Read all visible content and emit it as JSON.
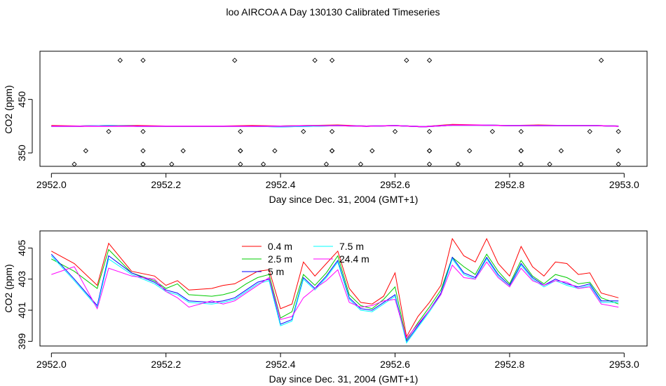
{
  "title": "loo AIRCOA A  Day 130130  Calibrated Timeseries",
  "chart_data": [
    {
      "type": "scatter",
      "xlabel": "Day since Dec. 31, 2004 (GMT+1)",
      "ylabel": "CO2 (ppm)",
      "xlim": [
        2951.98,
        2953.04
      ],
      "ylim": [
        325,
        540
      ],
      "xticks": [
        "2952.0",
        "2952.2",
        "2952.4",
        "2952.6",
        "2952.8",
        "2953.0"
      ],
      "yticks": [
        "350",
        "450"
      ],
      "points_x": [
        2952.04,
        2952.06,
        2952.1,
        2952.12,
        2952.16,
        2952.16,
        2952.16,
        2952.16,
        2952.16,
        2952.21,
        2952.23,
        2952.32,
        2952.33,
        2952.33,
        2952.33,
        2952.33,
        2952.37,
        2952.39,
        2952.44,
        2952.46,
        2952.48,
        2952.49,
        2952.49,
        2952.49,
        2952.49,
        2952.54,
        2952.56,
        2952.6,
        2952.62,
        2952.66,
        2952.66,
        2952.66,
        2952.66,
        2952.66,
        2952.71,
        2952.73,
        2952.77,
        2952.82,
        2952.82,
        2952.82,
        2952.82,
        2952.87,
        2952.89,
        2952.94,
        2952.96,
        2952.99,
        2952.99,
        2952.99
      ],
      "points_y": [
        329,
        354,
        390,
        523,
        523,
        390,
        354,
        329,
        329,
        329,
        354,
        523,
        390,
        354,
        329,
        354,
        329,
        354,
        390,
        523,
        329,
        390,
        354,
        523,
        354,
        329,
        354,
        390,
        523,
        523,
        390,
        354,
        329,
        354,
        329,
        354,
        390,
        390,
        354,
        329,
        354,
        329,
        354,
        390,
        523,
        390,
        354,
        329
      ],
      "series_x": [
        2952.0,
        2952.05,
        2952.1,
        2952.15,
        2952.2,
        2952.25,
        2952.3,
        2952.35,
        2952.4,
        2952.45,
        2952.5,
        2952.55,
        2952.6,
        2952.65,
        2952.7,
        2952.75,
        2952.8,
        2952.85,
        2952.9,
        2952.95,
        2952.99
      ],
      "series": [
        {
          "color": "#ff0000",
          "values": [
            401,
            400,
            401,
            401,
            400,
            400,
            400,
            401,
            400,
            401,
            402,
            400,
            401,
            399,
            403,
            402,
            401,
            402,
            401,
            401,
            400
          ]
        },
        {
          "color": "#00cc00",
          "values": [
            400,
            400,
            401,
            400,
            400,
            400,
            400,
            400,
            400,
            401,
            401,
            400,
            401,
            399,
            402,
            402,
            401,
            401,
            401,
            401,
            400
          ]
        },
        {
          "color": "#0000ff",
          "values": [
            400,
            400,
            401,
            400,
            400,
            400,
            400,
            400,
            399,
            400,
            401,
            400,
            401,
            399,
            402,
            402,
            401,
            401,
            401,
            401,
            400
          ]
        },
        {
          "color": "#00ffff",
          "values": [
            400,
            400,
            401,
            400,
            400,
            400,
            400,
            400,
            399,
            400,
            401,
            400,
            401,
            399,
            402,
            402,
            401,
            401,
            401,
            401,
            400
          ]
        },
        {
          "color": "#ff00ff",
          "values": [
            400,
            400,
            400,
            400,
            400,
            400,
            400,
            400,
            400,
            401,
            401,
            400,
            401,
            399,
            402,
            402,
            401,
            401,
            401,
            401,
            400
          ]
        }
      ]
    },
    {
      "type": "line",
      "xlabel": "Day since Dec. 31, 2004 (GMT+1)",
      "ylabel": "CO2 (ppm)",
      "xlim": [
        2951.98,
        2953.04
      ],
      "ylim": [
        398.7,
        406.1
      ],
      "xticks": [
        "2952.0",
        "2952.2",
        "2952.4",
        "2952.6",
        "2952.8",
        "2953.0"
      ],
      "yticks": [
        "399",
        "401",
        "403",
        "405"
      ],
      "legend_position": "top-center",
      "x": [
        2952.0,
        2952.04,
        2952.08,
        2952.1,
        2952.14,
        2952.18,
        2952.2,
        2952.22,
        2952.24,
        2952.28,
        2952.3,
        2952.32,
        2952.34,
        2952.36,
        2952.38,
        2952.4,
        2952.42,
        2952.44,
        2952.46,
        2952.48,
        2952.5,
        2952.52,
        2952.54,
        2952.56,
        2952.58,
        2952.6,
        2952.62,
        2952.64,
        2952.66,
        2952.68,
        2952.7,
        2952.72,
        2952.74,
        2952.76,
        2952.78,
        2952.8,
        2952.82,
        2952.84,
        2952.86,
        2952.88,
        2952.9,
        2952.92,
        2952.94,
        2952.96,
        2952.99
      ],
      "series": [
        {
          "name": "0.4 m",
          "color": "#ff0000",
          "values": [
            404.8,
            404.0,
            402.6,
            405.3,
            403.5,
            403.2,
            402.6,
            402.9,
            402.3,
            402.4,
            402.6,
            402.7,
            403.1,
            403.5,
            403.6,
            401.1,
            401.4,
            404.1,
            403.2,
            404.0,
            404.8,
            402.4,
            401.5,
            401.4,
            401.9,
            403.4,
            399.3,
            400.6,
            401.5,
            402.6,
            405.6,
            404.5,
            404.1,
            405.6,
            404.0,
            403.2,
            405.1,
            403.8,
            403.2,
            404.1,
            404.0,
            403.3,
            403.4,
            402.1,
            401.8
          ]
        },
        {
          "name": "2.5 m",
          "color": "#00cc00",
          "values": [
            404.3,
            403.5,
            402.4,
            404.9,
            403.4,
            402.9,
            402.4,
            402.7,
            402.0,
            401.9,
            402.0,
            402.2,
            402.7,
            403.1,
            403.3,
            400.5,
            400.9,
            403.3,
            402.6,
            403.4,
            404.5,
            402.0,
            401.3,
            401.1,
            401.7,
            402.5,
            399.1,
            400.2,
            401.2,
            402.3,
            404.4,
            403.8,
            403.3,
            404.6,
            403.5,
            402.7,
            404.2,
            403.2,
            402.7,
            403.3,
            403.1,
            402.7,
            402.8,
            401.8,
            401.4
          ]
        },
        {
          "name": "5 m",
          "color": "#0000ff",
          "values": [
            404.6,
            403.0,
            401.3,
            404.5,
            403.4,
            402.8,
            402.3,
            402.1,
            401.6,
            401.5,
            401.6,
            401.8,
            402.3,
            402.8,
            403.0,
            400.1,
            400.4,
            403.1,
            402.4,
            403.2,
            404.2,
            401.8,
            401.1,
            401.0,
            401.5,
            402.0,
            399.0,
            400.0,
            401.0,
            402.1,
            404.4,
            403.4,
            403.1,
            404.4,
            403.3,
            402.6,
            404.0,
            403.1,
            402.6,
            403.0,
            402.7,
            402.5,
            402.7,
            401.6,
            401.6
          ]
        },
        {
          "name": "7.5 m",
          "color": "#00ffff",
          "values": [
            404.5,
            402.9,
            401.2,
            404.3,
            403.3,
            402.7,
            402.2,
            402.0,
            401.5,
            401.4,
            401.5,
            401.7,
            402.2,
            402.7,
            402.9,
            400.0,
            400.3,
            403.0,
            402.3,
            403.1,
            404.1,
            401.7,
            401.0,
            400.9,
            401.4,
            401.9,
            398.9,
            399.9,
            400.9,
            402.0,
            404.3,
            403.3,
            403.0,
            404.3,
            403.2,
            402.5,
            403.9,
            403.0,
            402.5,
            402.9,
            402.6,
            402.4,
            402.6,
            401.5,
            401.5
          ]
        },
        {
          "name": "24.4 m",
          "color": "#ff00ff",
          "values": [
            403.3,
            403.8,
            401.1,
            403.7,
            403.2,
            403.0,
            402.2,
            401.8,
            401.2,
            401.6,
            401.4,
            401.6,
            402.1,
            402.6,
            403.1,
            400.4,
            400.6,
            401.8,
            402.4,
            402.9,
            403.6,
            401.5,
            401.2,
            401.3,
            401.6,
            401.7,
            399.2,
            400.1,
            401.0,
            402.0,
            403.9,
            403.1,
            403.0,
            404.1,
            403.1,
            402.5,
            403.7,
            402.9,
            402.6,
            402.9,
            402.8,
            402.4,
            402.5,
            401.4,
            401.2
          ]
        }
      ]
    }
  ]
}
